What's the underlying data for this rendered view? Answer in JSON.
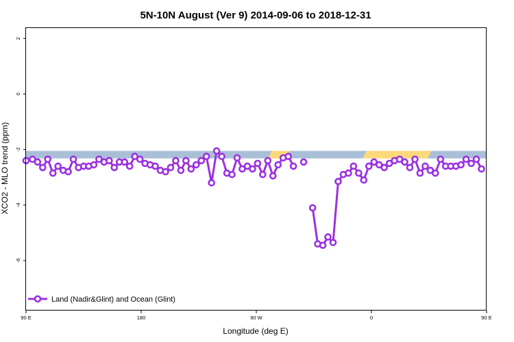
{
  "chart_data": {
    "type": "line",
    "title": "5N-10N August (Ver 9)   2014-09-06 to 2018-12-31",
    "xlabel": "Longitude (deg E)",
    "ylabel": "XCO2 - MLO trend (ppm)",
    "xlim": [
      90,
      450
    ],
    "ylim": [
      -7.8,
      2.4
    ],
    "x_ticks": [
      {
        "value": 90,
        "label": "90 E"
      },
      {
        "value": 180,
        "label": "180"
      },
      {
        "value": 270,
        "label": "90 W"
      },
      {
        "value": 360,
        "label": "0"
      },
      {
        "value": 450,
        "label": "90 E"
      },
      {
        "value": 540,
        "label": "180"
      }
    ],
    "y_ticks": [
      {
        "value": 2,
        "label": "2"
      },
      {
        "value": 0,
        "label": "0"
      },
      {
        "value": -2,
        "label": "-2"
      },
      {
        "value": -4,
        "label": "-4"
      },
      {
        "value": -6,
        "label": "-6"
      }
    ],
    "surface_band": {
      "y_range": [
        -2.32,
        -2.05
      ],
      "colors": {
        "ocean": "#a9bfd8",
        "land": "#fcd97a"
      },
      "land_x_ranges": [
        [
          279,
          296
        ],
        [
          353,
          407
        ]
      ]
    },
    "series": [
      {
        "name": "Land (Nadir&Glint) and Ocean (Glint)",
        "color": "#9b30e0",
        "points": [
          [
            90,
            -2.4
          ],
          [
            95,
            -2.35
          ],
          [
            99,
            -2.45
          ],
          [
            103,
            -2.65
          ],
          [
            107,
            -2.35
          ],
          [
            111,
            -2.85
          ],
          [
            115,
            -2.6
          ],
          [
            119,
            -2.75
          ],
          [
            123,
            -2.8
          ],
          [
            127,
            -2.35
          ],
          [
            131,
            -2.65
          ],
          [
            135,
            -2.6
          ],
          [
            139,
            -2.6
          ],
          [
            143,
            -2.55
          ],
          [
            147,
            -2.35
          ],
          [
            151,
            -2.45
          ],
          [
            155,
            -2.4
          ],
          [
            159,
            -2.65
          ],
          [
            163,
            -2.45
          ],
          [
            167,
            -2.45
          ],
          [
            171,
            -2.6
          ],
          [
            175,
            -2.25
          ],
          [
            179,
            -2.35
          ],
          [
            183,
            -2.5
          ],
          [
            187,
            -2.55
          ],
          [
            191,
            -2.6
          ],
          [
            195,
            -2.75
          ],
          [
            199,
            -2.8
          ],
          [
            203,
            -2.65
          ],
          [
            207,
            -2.4
          ],
          [
            211,
            -2.75
          ],
          [
            215,
            -2.4
          ],
          [
            219,
            -2.7
          ],
          [
            223,
            -2.55
          ],
          [
            227,
            -2.4
          ],
          [
            231,
            -2.25
          ],
          [
            235,
            -3.2
          ],
          [
            239,
            -2.05
          ],
          [
            243,
            -2.25
          ],
          [
            247,
            -2.85
          ],
          [
            251,
            -2.9
          ],
          [
            255,
            -2.3
          ],
          [
            259,
            -2.7
          ],
          [
            263,
            -2.6
          ],
          [
            267,
            -2.7
          ],
          [
            271,
            -2.5
          ],
          [
            275,
            -2.9
          ],
          [
            279,
            -2.4
          ],
          [
            283,
            -2.95
          ],
          [
            287,
            -2.55
          ],
          [
            291,
            -2.3
          ],
          [
            295,
            -2.25
          ],
          [
            299,
            -2.6
          ],
          null,
          [
            307,
            -2.45
          ],
          null,
          [
            314,
            -4.1
          ],
          [
            318,
            -5.4
          ],
          [
            322,
            -5.45
          ],
          [
            326,
            -5.15
          ],
          [
            330,
            -5.35
          ],
          [
            334,
            -3.15
          ],
          [
            338,
            -2.9
          ],
          [
            342,
            -2.85
          ],
          [
            346,
            -2.6
          ],
          [
            350,
            -2.85
          ],
          [
            354,
            -3.1
          ],
          [
            358,
            -2.6
          ],
          [
            362,
            -2.45
          ],
          [
            366,
            -2.55
          ],
          [
            370,
            -2.65
          ],
          [
            374,
            -2.5
          ],
          [
            378,
            -2.4
          ],
          [
            382,
            -2.35
          ],
          [
            386,
            -2.45
          ],
          [
            390,
            -2.65
          ],
          [
            394,
            -2.35
          ],
          [
            398,
            -2.85
          ],
          [
            402,
            -2.6
          ],
          [
            406,
            -2.75
          ],
          [
            410,
            -2.85
          ],
          [
            414,
            -2.35
          ],
          [
            418,
            -2.6
          ],
          [
            422,
            -2.6
          ],
          [
            426,
            -2.6
          ],
          [
            430,
            -2.55
          ],
          [
            434,
            -2.35
          ],
          [
            438,
            -2.5
          ],
          [
            442,
            -2.35
          ],
          [
            446,
            -2.7
          ]
        ]
      }
    ],
    "legend": {
      "position": "bottom-left"
    }
  }
}
